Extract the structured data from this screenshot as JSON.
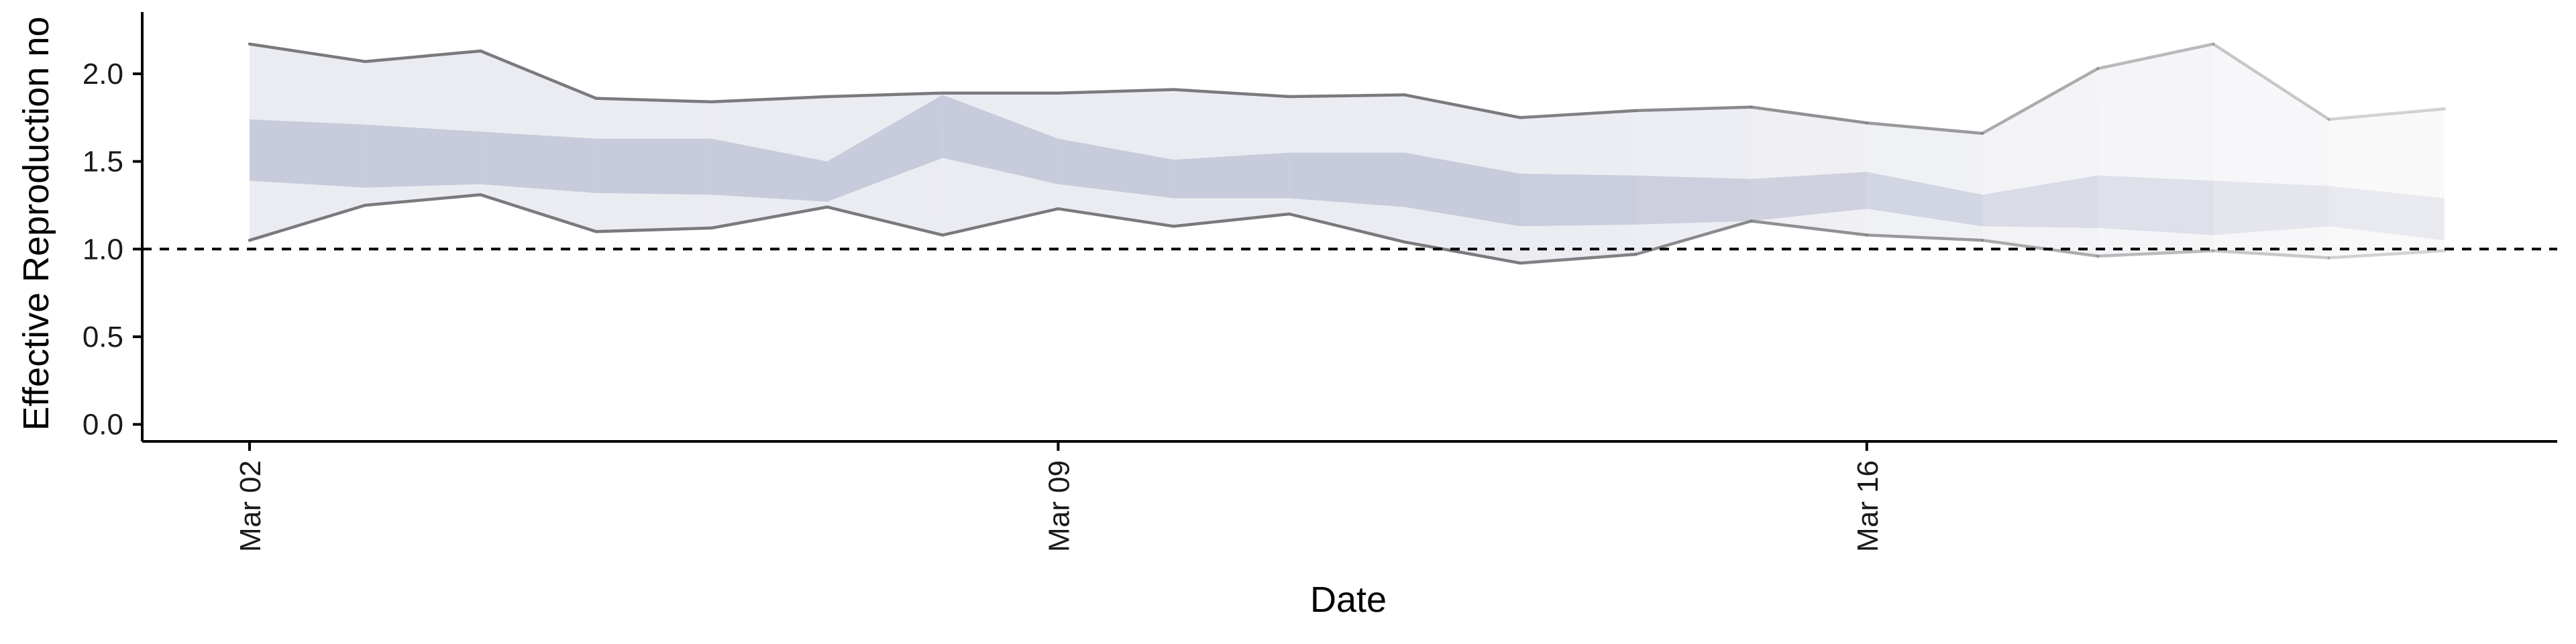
{
  "chart_data": {
    "type": "area",
    "xlabel": "Date",
    "ylabel": "Effective Reproduction no",
    "ylim": [
      -0.1,
      2.3
    ],
    "yticks": [
      0.0,
      0.5,
      1.0,
      1.5,
      2.0
    ],
    "ytick_labels": [
      "0.0",
      "0.5",
      "1.0",
      "1.5",
      "2.0"
    ],
    "xlim": [
      "2020-03-01",
      "2020-03-21"
    ],
    "xticks": [
      "2020-03-02",
      "2020-03-09",
      "2020-03-16"
    ],
    "xtick_labels": [
      "Mar 02",
      "Mar 09",
      "Mar 16"
    ],
    "reference_line": {
      "y": 1.0,
      "style": "dashed"
    },
    "grid": false,
    "legend": "none",
    "dates": [
      "2020-03-02",
      "2020-03-03",
      "2020-03-04",
      "2020-03-05",
      "2020-03-06",
      "2020-03-07",
      "2020-03-08",
      "2020-03-09",
      "2020-03-10",
      "2020-03-11",
      "2020-03-12",
      "2020-03-13",
      "2020-03-14",
      "2020-03-15",
      "2020-03-16",
      "2020-03-17",
      "2020-03-18",
      "2020-03-19",
      "2020-03-20",
      "2020-03-21"
    ],
    "bands": [
      {
        "role": "outer",
        "lower": [
          1.05,
          1.25,
          1.31,
          1.1,
          1.12,
          1.24,
          1.08,
          1.23,
          1.13,
          1.2,
          1.04,
          0.92,
          0.97,
          1.16,
          1.08,
          1.05,
          0.96,
          0.99,
          0.95,
          0.99
        ],
        "upper": [
          2.17,
          2.07,
          2.13,
          1.86,
          1.84,
          1.87,
          1.89,
          1.89,
          1.91,
          1.87,
          1.88,
          1.75,
          1.79,
          1.81,
          1.72,
          1.66,
          2.03,
          2.17,
          1.74,
          1.8
        ]
      },
      {
        "role": "inner",
        "lower": [
          1.39,
          1.35,
          1.37,
          1.32,
          1.31,
          1.27,
          1.52,
          1.37,
          1.29,
          1.29,
          1.24,
          1.13,
          1.14,
          1.16,
          1.23,
          1.13,
          1.12,
          1.08,
          1.13,
          1.05
        ],
        "upper": [
          1.74,
          1.71,
          1.67,
          1.63,
          1.63,
          1.5,
          1.88,
          1.63,
          1.51,
          1.55,
          1.55,
          1.43,
          1.42,
          1.4,
          1.44,
          1.31,
          1.42,
          1.39,
          1.36,
          1.29
        ]
      }
    ],
    "colors": {
      "outer_band": "#ebecf1",
      "inner_band": "#c8cbdb",
      "bound_line": "#7a7a7e",
      "reference_line": "#000000",
      "axis": "#000000"
    },
    "opacity_by_date": [
      1,
      1,
      1,
      1,
      1,
      1,
      1,
      1,
      1,
      1,
      1,
      0.95,
      0.88,
      0.82,
      0.75,
      0.62,
      0.5,
      0.4,
      0.32,
      0.28
    ]
  }
}
